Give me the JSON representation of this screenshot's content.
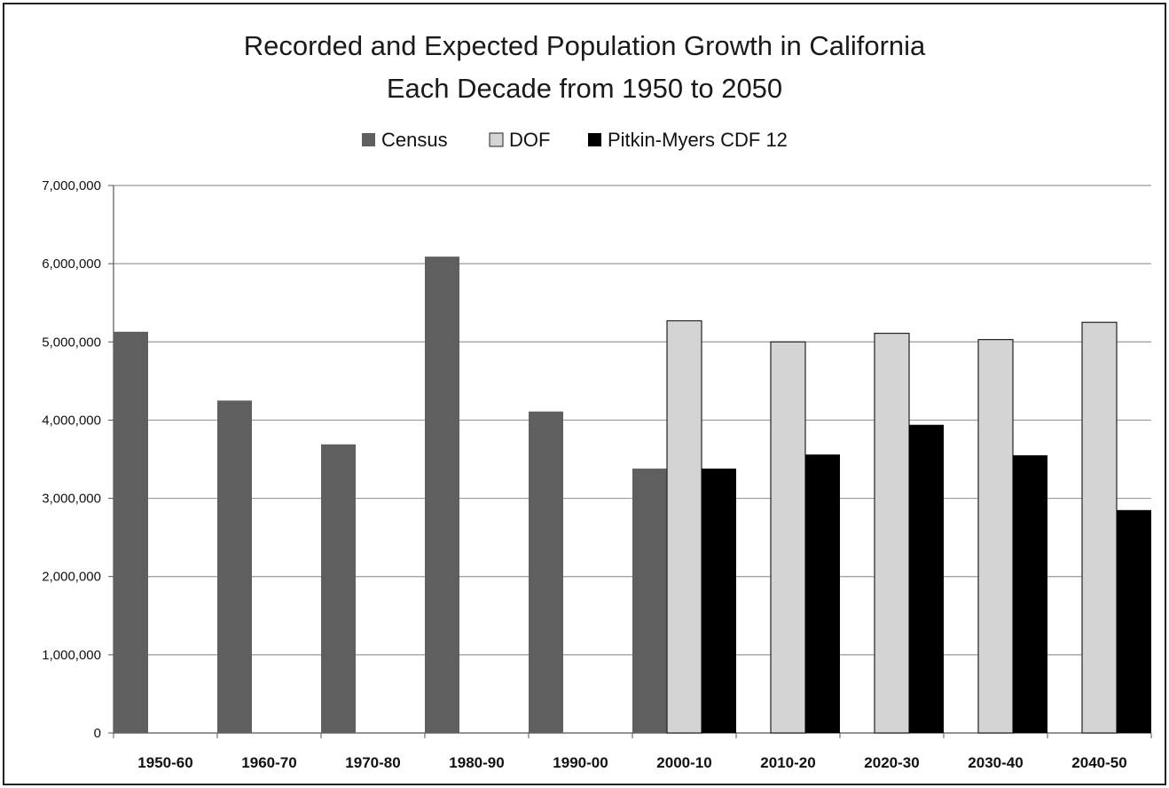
{
  "chart_data": {
    "type": "bar",
    "title_line1": "Recorded and Expected Population Growth in California",
    "title_line2": "Each Decade from 1950 to 2050",
    "categories": [
      "1950-60",
      "1960-70",
      "1970-80",
      "1980-90",
      "1990-00",
      "2000-10",
      "2010-20",
      "2020-30",
      "2030-40",
      "2040-50"
    ],
    "series": [
      {
        "name": "Census",
        "color": "#5f5f5f",
        "values": [
          5130000,
          4250000,
          3690000,
          6090000,
          4110000,
          3380000,
          null,
          null,
          null,
          null
        ]
      },
      {
        "name": "DOF",
        "color": "#d4d4d4",
        "values": [
          null,
          null,
          null,
          null,
          null,
          5270000,
          5000000,
          5110000,
          5030000,
          5250000
        ]
      },
      {
        "name": "Pitkin-Myers CDF 12",
        "color": "#000000",
        "values": [
          null,
          null,
          null,
          null,
          null,
          3380000,
          3560000,
          3940000,
          3550000,
          2850000
        ]
      }
    ],
    "ylim": [
      0,
      7000000
    ],
    "yticks": [
      0,
      1000000,
      2000000,
      3000000,
      4000000,
      5000000,
      6000000,
      7000000
    ],
    "ytick_labels": [
      "0",
      "1,000,000",
      "2,000,000",
      "3,000,000",
      "4,000,000",
      "5,000,000",
      "6,000,000",
      "7,000,000"
    ],
    "grid": true,
    "legend": "top-center"
  }
}
